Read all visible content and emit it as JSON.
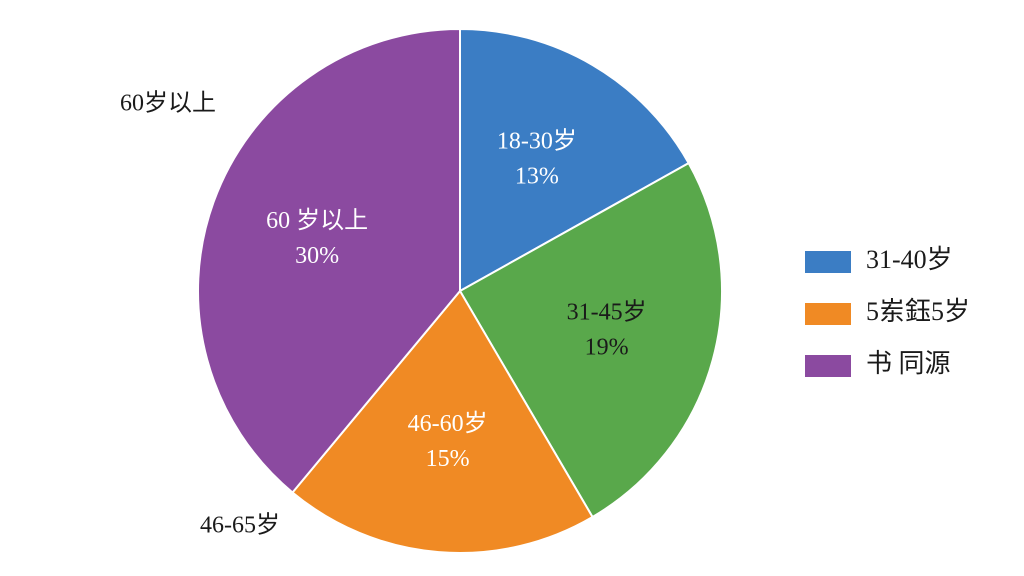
{
  "chart_data": {
    "type": "pie",
    "categories": [
      "18-30岁",
      "31-45岁",
      "46-60岁",
      "60 岁以上"
    ],
    "values": [
      13,
      19,
      15,
      30
    ],
    "value_labels": [
      "13%",
      "19%",
      "15%",
      "30%"
    ],
    "colors": [
      "#3b7dc4",
      "#59a84b",
      "#f08a24",
      "#8b4aa0"
    ],
    "annotations": [
      "60岁以上",
      "46-65岁"
    ],
    "legend": [
      {
        "label": "31-40岁",
        "color": "#3b7dc4"
      },
      {
        "label": "5岽鈺5岁",
        "color": "#f08a24"
      },
      {
        "label": "书 同源",
        "color": "#8b4aa0"
      }
    ]
  }
}
